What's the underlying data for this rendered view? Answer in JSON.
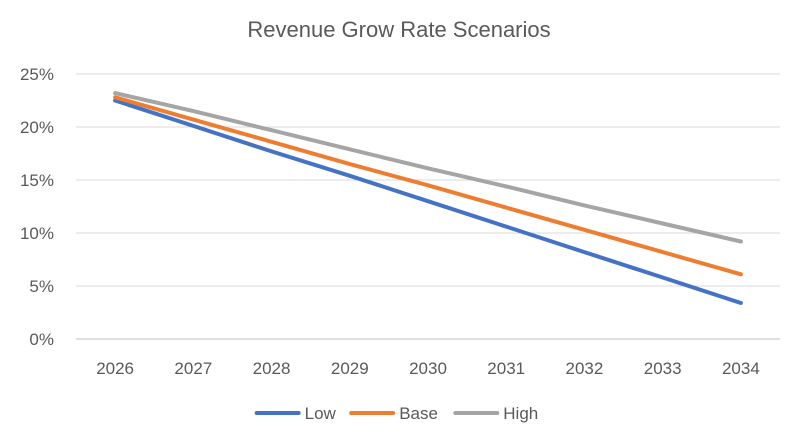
{
  "chart_data": {
    "type": "line",
    "title": "Revenue Grow Rate Scenarios",
    "xlabel": "",
    "ylabel": "",
    "categories": [
      "2026",
      "2027",
      "2028",
      "2029",
      "2030",
      "2031",
      "2032",
      "2033",
      "2034"
    ],
    "ylim": [
      0,
      25
    ],
    "yticks": [
      {
        "value": 0,
        "label": "0%"
      },
      {
        "value": 5,
        "label": "5%"
      },
      {
        "value": 10,
        "label": "10%"
      },
      {
        "value": 15,
        "label": "15%"
      },
      {
        "value": 20,
        "label": "20%"
      },
      {
        "value": 25,
        "label": "25%"
      }
    ],
    "grid": true,
    "legend_position": "bottom",
    "series": [
      {
        "name": "Low",
        "color": "#4472C4",
        "values": [
          22.5,
          20.1,
          17.7,
          15.4,
          13.0,
          10.6,
          8.2,
          5.8,
          3.4
        ]
      },
      {
        "name": "Base",
        "color": "#ED7D31",
        "values": [
          22.8,
          20.7,
          18.6,
          16.5,
          14.5,
          12.4,
          10.3,
          8.2,
          6.1
        ]
      },
      {
        "name": "High",
        "color": "#A5A5A5",
        "values": [
          23.2,
          21.5,
          19.7,
          17.9,
          16.1,
          14.4,
          12.6,
          10.9,
          9.2
        ]
      }
    ]
  }
}
